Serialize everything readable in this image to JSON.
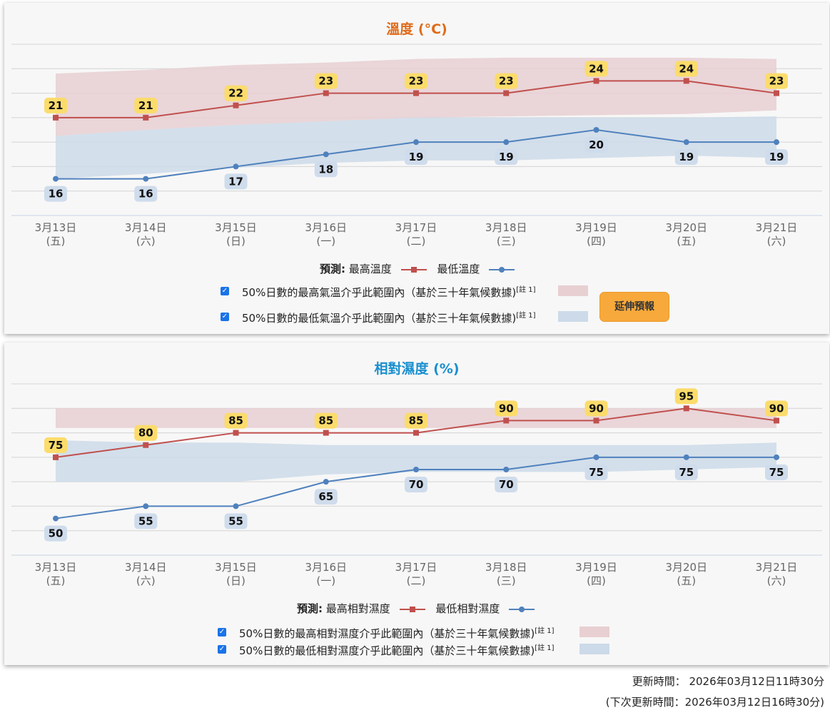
{
  "temp_panel": {
    "title": "溫度 (°C)",
    "title_color": "#e06b19",
    "legend_forecast": "預測:",
    "legend_max": "最高溫度",
    "legend_min": "最低溫度",
    "band_max_text": "50%日數的最高氣溫介乎此範圍內（基於三十年氣候數據)",
    "band_min_text": "50%日數的最低氣溫介乎此範圍內（基於三十年氣候數據)",
    "note": "[註 1]",
    "extend_button": "延伸預報"
  },
  "hum_panel": {
    "title": "相對濕度 (%)",
    "title_color": "#1a8fcf",
    "legend_forecast": "預測:",
    "legend_max": "最高相對濕度",
    "legend_min": "最低相對濕度",
    "band_max_text": "50%日數的最高相對濕度介乎此範圍內（基於三十年氣候數據)",
    "band_min_text": "50%日數的最低相對濕度介乎此範圍內（基於三十年氣候數據)",
    "note": "[註 1]"
  },
  "footer": {
    "update_time": "更新時間： 2026年03月12日11時30分",
    "next_update": "(下次更新時間：2026年03月12日16時30分)"
  },
  "colors": {
    "max_line": "#c0504d",
    "min_line": "#4f81bd",
    "max_band": "#e8cfd2",
    "min_band": "#ccdae9",
    "max_label_bg": "#fbdc6b",
    "min_label_bg": "#cfdcec"
  },
  "chart_data": [
    {
      "type": "line",
      "title": "溫度 (°C)",
      "categories": [
        "3月13日",
        "3月14日",
        "3月15日",
        "3月16日",
        "3月17日",
        "3月18日",
        "3月19日",
        "3月20日",
        "3月21日"
      ],
      "weekdays": [
        "(五)",
        "(六)",
        "(日)",
        "(一)",
        "(二)",
        "(三)",
        "(四)",
        "(五)",
        "(六)"
      ],
      "ylim": [
        13,
        27
      ],
      "grid": true,
      "series": [
        {
          "name": "最高溫度",
          "values": [
            21,
            21,
            22,
            23,
            23,
            23,
            24,
            24,
            23
          ]
        },
        {
          "name": "最低溫度",
          "values": [
            16,
            16,
            17,
            18,
            19,
            19,
            20,
            19,
            19
          ]
        }
      ],
      "bands": [
        {
          "name": "最高溫度 50% 範圍",
          "upper": [
            24.6,
            24.9,
            25.3,
            25.5,
            25.8,
            25.9,
            25.9,
            25.9,
            25.8
          ],
          "lower": [
            19.5,
            20.0,
            20.4,
            20.7,
            21.0,
            21.1,
            21.2,
            21.3,
            21.6
          ]
        },
        {
          "name": "最低溫度 50% 範圍",
          "upper": [
            19.5,
            20.0,
            20.4,
            20.7,
            21.0,
            21.0,
            21.0,
            21.0,
            21.1
          ],
          "lower": [
            16.0,
            16.4,
            16.9,
            17.3,
            17.5,
            17.5,
            17.7,
            17.9,
            17.7
          ]
        }
      ]
    },
    {
      "type": "line",
      "title": "相對濕度 (%)",
      "categories": [
        "3月13日",
        "3月14日",
        "3月15日",
        "3月16日",
        "3月17日",
        "3月18日",
        "3月19日",
        "3月20日",
        "3月21日"
      ],
      "weekdays": [
        "(五)",
        "(六)",
        "(日)",
        "(一)",
        "(二)",
        "(三)",
        "(四)",
        "(五)",
        "(六)"
      ],
      "ylim": [
        35,
        105
      ],
      "grid": true,
      "series": [
        {
          "name": "最高相對濕度",
          "values": [
            75,
            80,
            85,
            85,
            85,
            90,
            90,
            95,
            90
          ]
        },
        {
          "name": "最低相對濕度",
          "values": [
            50,
            55,
            55,
            65,
            70,
            70,
            75,
            75,
            75
          ]
        }
      ],
      "bands": [
        {
          "name": "最高相對濕度 50% 範圍",
          "upper": [
            95,
            95,
            95,
            95,
            95,
            95,
            95,
            95,
            95
          ],
          "lower": [
            87,
            87,
            87,
            87,
            87,
            87,
            87,
            87,
            87
          ]
        },
        {
          "name": "最低相對濕度 50% 範圍",
          "upper": [
            82,
            81,
            81,
            80,
            80,
            80,
            80,
            80,
            81
          ],
          "lower": [
            65,
            65,
            65,
            68,
            69,
            69,
            69,
            70,
            71
          ]
        }
      ]
    }
  ]
}
